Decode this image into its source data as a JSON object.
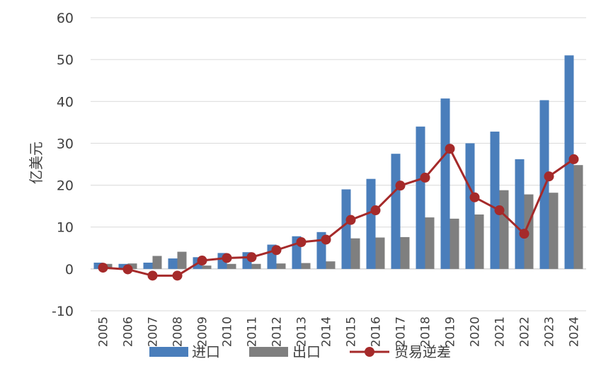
{
  "chart_data": {
    "type": "bar",
    "categories": [
      "2005",
      "2006",
      "2007",
      "2008",
      "2009",
      "2010",
      "2011",
      "2012",
      "2013",
      "2014",
      "2015",
      "2016",
      "2017",
      "2018",
      "2019",
      "2020",
      "2021",
      "2022",
      "2023",
      "2024"
    ],
    "ylabel": "亿美元",
    "ylim": [
      -10,
      60
    ],
    "yticks": [
      "60",
      "50",
      "40",
      "30",
      "20",
      "10",
      "0",
      "-10"
    ],
    "grid": true,
    "legend_position": "bottom",
    "series": [
      {
        "name": "进口",
        "kind": "bar",
        "color": "#4A7EBB",
        "values": [
          1.5,
          1.2,
          1.5,
          2.5,
          2.8,
          3.8,
          4.0,
          5.8,
          7.8,
          8.8,
          19.0,
          21.5,
          27.5,
          34.0,
          40.7,
          30.0,
          32.8,
          26.2,
          40.3,
          51.0
        ]
      },
      {
        "name": "出口",
        "kind": "bar",
        "color": "#7F7F7F",
        "values": [
          1.2,
          1.3,
          3.1,
          4.1,
          0.8,
          1.2,
          1.2,
          1.3,
          1.4,
          1.8,
          7.3,
          7.5,
          7.6,
          12.3,
          12.0,
          13.0,
          18.8,
          17.8,
          18.2,
          24.8
        ]
      },
      {
        "name": "贸易逆差",
        "kind": "line",
        "color": "#A52A2A",
        "values": [
          0.3,
          -0.1,
          -1.6,
          -1.6,
          2.0,
          2.6,
          2.8,
          4.5,
          6.4,
          7.0,
          11.7,
          14.0,
          19.9,
          21.8,
          28.7,
          17.1,
          14.0,
          8.4,
          22.1,
          26.2
        ]
      }
    ]
  }
}
